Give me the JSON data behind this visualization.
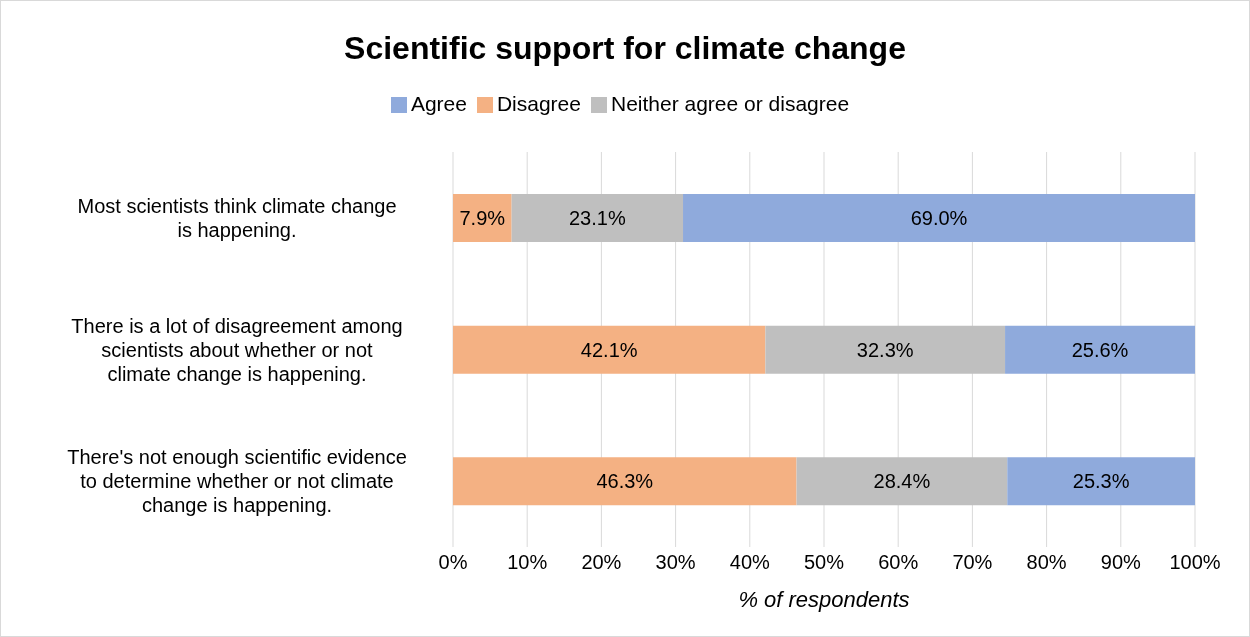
{
  "chart_data": {
    "type": "bar",
    "title": "Scientific support for climate change",
    "xlabel": "% of respondents",
    "orientation": "horizontal",
    "stacked": true,
    "grid": "x",
    "legend": "top",
    "categories": [
      "Most scientists think climate change is happening.",
      "There is a lot of disagreement among scientists about whether or not climate change is happening.",
      "There's not enough scientific evidence to determine whether or not climate change is happening."
    ],
    "xlim": [
      0,
      100
    ],
    "xticks": [
      {
        "value": 0,
        "label": "0%"
      },
      {
        "value": 10,
        "label": "10%"
      },
      {
        "value": 20,
        "label": "20%"
      },
      {
        "value": 30,
        "label": "30%"
      },
      {
        "value": 40,
        "label": "40%"
      },
      {
        "value": 50,
        "label": "50%"
      },
      {
        "value": 60,
        "label": "60%"
      },
      {
        "value": 70,
        "label": "70%"
      },
      {
        "value": 80,
        "label": "80%"
      },
      {
        "value": 90,
        "label": "90%"
      },
      {
        "value": 100,
        "label": "100%"
      }
    ],
    "series": [
      {
        "name": "Disagree",
        "color": "#f4b183",
        "values": [
          7.9,
          42.1,
          46.3
        ],
        "value_labels": [
          "7.9%",
          "42.1%",
          "46.3%"
        ]
      },
      {
        "name": "Neither agree or disagree",
        "color": "#bfbfbf",
        "values": [
          23.1,
          32.3,
          28.4
        ],
        "value_labels": [
          "23.1%",
          "32.3%",
          "28.4%"
        ]
      },
      {
        "name": "Agree",
        "color": "#8faadc",
        "values": [
          69.0,
          25.6,
          25.3
        ],
        "value_labels": [
          "69.0%",
          "25.6%",
          "25.3%"
        ]
      }
    ]
  }
}
